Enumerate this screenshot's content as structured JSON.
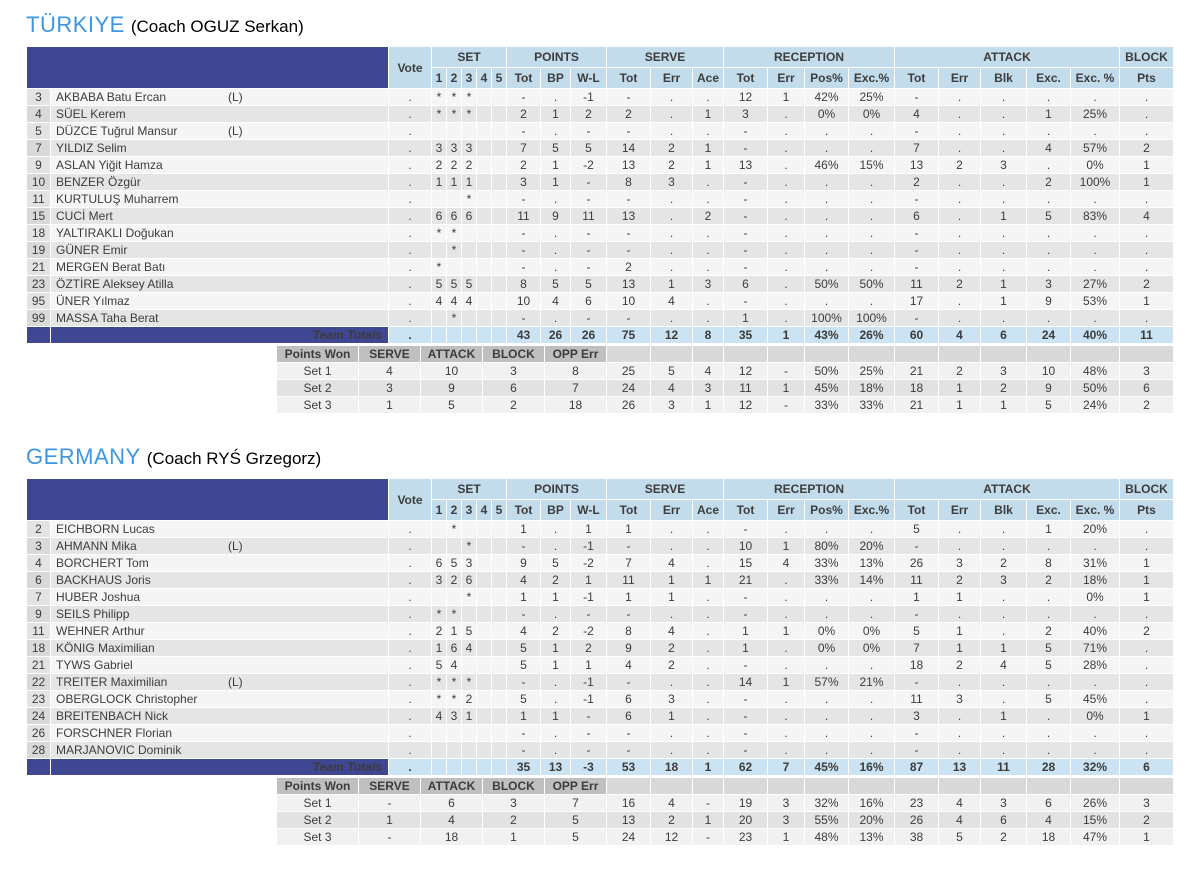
{
  "colors": {
    "team_title_blue": "#3D96E2",
    "header_navy": "#3F4692",
    "header_light_blue": "#C3DCEC",
    "totals_light_blue": "#CBE3F3"
  },
  "header": {
    "vote": "Vote",
    "groups": [
      {
        "label": "SET",
        "cols": [
          "1",
          "2",
          "3",
          "4",
          "5"
        ]
      },
      {
        "label": "POINTS",
        "cols": [
          "Tot",
          "BP",
          "W-L"
        ]
      },
      {
        "label": "SERVE",
        "cols": [
          "Tot",
          "Err",
          "Ace"
        ]
      },
      {
        "label": "RECEPTION",
        "cols": [
          "Tot",
          "Err",
          "Pos%",
          "Exc.%"
        ]
      },
      {
        "label": "ATTACK",
        "cols": [
          "Tot",
          "Err",
          "Blk",
          "Exc.",
          "Exc. %"
        ]
      },
      {
        "label": "BLOCK",
        "cols": [
          "Pts"
        ]
      }
    ]
  },
  "summary_header": [
    "Points Won",
    "SERVE",
    "ATTACK",
    "BLOCK",
    "OPP Err"
  ],
  "team_totals_label": "Team Totals",
  "teams": [
    {
      "name": "TÜRKIYE",
      "coach": "(Coach OGUZ Serkan)",
      "players": [
        {
          "num": "3",
          "name": "AKBABA Batu Ercan",
          "libero": "(L)",
          "vote": ".",
          "sets": [
            "*",
            "*",
            "*",
            "",
            ""
          ],
          "stats": [
            "-",
            ".",
            "-1",
            "-",
            ".",
            ".",
            "12",
            "1",
            "42%",
            "25%",
            "-",
            ".",
            ".",
            ".",
            ".",
            "."
          ]
        },
        {
          "num": "4",
          "name": "SÜEL Kerem",
          "libero": "",
          "vote": ".",
          "sets": [
            "*",
            "*",
            "*",
            "",
            ""
          ],
          "stats": [
            "2",
            "1",
            "2",
            "2",
            ".",
            "1",
            "3",
            ".",
            "0%",
            "0%",
            "4",
            ".",
            ".",
            "1",
            "25%",
            "."
          ]
        },
        {
          "num": "5",
          "name": "DÜZCE Tuğrul Mansur",
          "libero": "(L)",
          "vote": ".",
          "sets": [
            "",
            "",
            "",
            "",
            ""
          ],
          "stats": [
            "-",
            ".",
            "-",
            "-",
            ".",
            ".",
            "-",
            ".",
            ".",
            ".",
            "-",
            ".",
            ".",
            ".",
            ".",
            "."
          ]
        },
        {
          "num": "7",
          "name": "YILDIZ Selim",
          "libero": "",
          "vote": ".",
          "sets": [
            "3",
            "3",
            "3",
            "",
            ""
          ],
          "stats": [
            "7",
            "5",
            "5",
            "14",
            "2",
            "1",
            "-",
            ".",
            ".",
            ".",
            "7",
            ".",
            ".",
            "4",
            "57%",
            "2"
          ]
        },
        {
          "num": "9",
          "name": "ASLAN Yiğit Hamza",
          "libero": "",
          "vote": ".",
          "sets": [
            "2",
            "2",
            "2",
            "",
            ""
          ],
          "stats": [
            "2",
            "1",
            "-2",
            "13",
            "2",
            "1",
            "13",
            ".",
            "46%",
            "15%",
            "13",
            "2",
            "3",
            ".",
            "0%",
            "1"
          ]
        },
        {
          "num": "10",
          "name": "BENZER Özgür",
          "libero": "",
          "vote": ".",
          "sets": [
            "1",
            "1",
            "1",
            "",
            ""
          ],
          "stats": [
            "3",
            "1",
            "-",
            "8",
            "3",
            ".",
            "-",
            ".",
            ".",
            ".",
            "2",
            ".",
            ".",
            "2",
            "100%",
            "1"
          ]
        },
        {
          "num": "11",
          "name": "KURTULUŞ Muharrem",
          "libero": "",
          "vote": ".",
          "sets": [
            "",
            "",
            "*",
            "",
            ""
          ],
          "stats": [
            "-",
            ".",
            "-",
            "-",
            ".",
            ".",
            "-",
            ".",
            ".",
            ".",
            "-",
            ".",
            ".",
            ".",
            ".",
            "."
          ]
        },
        {
          "num": "15",
          "name": "CUCİ Mert",
          "libero": "",
          "vote": ".",
          "sets": [
            "6",
            "6",
            "6",
            "",
            ""
          ],
          "stats": [
            "11",
            "9",
            "11",
            "13",
            ".",
            "2",
            "-",
            ".",
            ".",
            ".",
            "6",
            ".",
            "1",
            "5",
            "83%",
            "4"
          ]
        },
        {
          "num": "18",
          "name": "YALTIRAKLI Doğukan",
          "libero": "",
          "vote": ".",
          "sets": [
            "*",
            "*",
            "",
            "",
            ""
          ],
          "stats": [
            "-",
            ".",
            "-",
            "-",
            ".",
            ".",
            "-",
            ".",
            ".",
            ".",
            "-",
            ".",
            ".",
            ".",
            ".",
            "."
          ]
        },
        {
          "num": "19",
          "name": "GÜNER Emir",
          "libero": "",
          "vote": ".",
          "sets": [
            "",
            "*",
            "",
            "",
            ""
          ],
          "stats": [
            "-",
            ".",
            "-",
            "-",
            ".",
            ".",
            "-",
            ".",
            ".",
            ".",
            "-",
            ".",
            ".",
            ".",
            ".",
            "."
          ]
        },
        {
          "num": "21",
          "name": "MERGEN Berat Batı",
          "libero": "",
          "vote": ".",
          "sets": [
            "*",
            "",
            "",
            "",
            ""
          ],
          "stats": [
            "-",
            ".",
            "-",
            "2",
            ".",
            ".",
            "-",
            ".",
            ".",
            ".",
            "-",
            ".",
            ".",
            ".",
            ".",
            "."
          ]
        },
        {
          "num": "23",
          "name": "ÖZTİRE Aleksey Atilla",
          "libero": "",
          "vote": ".",
          "sets": [
            "5",
            "5",
            "5",
            "",
            ""
          ],
          "stats": [
            "8",
            "5",
            "5",
            "13",
            "1",
            "3",
            "6",
            ".",
            "50%",
            "50%",
            "11",
            "2",
            "1",
            "3",
            "27%",
            "2"
          ]
        },
        {
          "num": "95",
          "name": "ÜNER Yılmaz",
          "libero": "",
          "vote": ".",
          "sets": [
            "4",
            "4",
            "4",
            "",
            ""
          ],
          "stats": [
            "10",
            "4",
            "6",
            "10",
            "4",
            ".",
            "-",
            ".",
            ".",
            ".",
            "17",
            ".",
            "1",
            "9",
            "53%",
            "1"
          ]
        },
        {
          "num": "99",
          "name": "MASSA Taha Berat",
          "libero": "",
          "vote": ".",
          "sets": [
            "",
            "*",
            "",
            "",
            ""
          ],
          "stats": [
            "-",
            ".",
            "-",
            "-",
            ".",
            ".",
            "1",
            ".",
            "100%",
            "100%",
            "-",
            ".",
            ".",
            ".",
            ".",
            "."
          ]
        }
      ],
      "totals": {
        "vote": ".",
        "stats": [
          "43",
          "26",
          "26",
          "75",
          "12",
          "8",
          "35",
          "1",
          "43%",
          "26%",
          "60",
          "4",
          "6",
          "24",
          "40%",
          "11"
        ]
      },
      "set_rows": [
        {
          "label": "Set 1",
          "won": [
            "4",
            "10",
            "3",
            "8"
          ],
          "stats": [
            "25",
            "5",
            "4",
            "12",
            "-",
            "50%",
            "25%",
            "21",
            "2",
            "3",
            "10",
            "48%",
            "3"
          ]
        },
        {
          "label": "Set 2",
          "won": [
            "3",
            "9",
            "6",
            "7"
          ],
          "stats": [
            "24",
            "4",
            "3",
            "11",
            "1",
            "45%",
            "18%",
            "18",
            "1",
            "2",
            "9",
            "50%",
            "6"
          ]
        },
        {
          "label": "Set 3",
          "won": [
            "1",
            "5",
            "2",
            "18"
          ],
          "stats": [
            "26",
            "3",
            "1",
            "12",
            "-",
            "33%",
            "33%",
            "21",
            "1",
            "1",
            "5",
            "24%",
            "2"
          ]
        }
      ]
    },
    {
      "name": "GERMANY",
      "coach": "(Coach RYŚ Grzegorz)",
      "players": [
        {
          "num": "2",
          "name": "EICHBORN Lucas",
          "libero": "",
          "vote": ".",
          "sets": [
            "",
            "*",
            "",
            "",
            ""
          ],
          "stats": [
            "1",
            ".",
            "1",
            "1",
            ".",
            ".",
            "-",
            ".",
            ".",
            ".",
            "5",
            ".",
            ".",
            "1",
            "20%",
            "."
          ]
        },
        {
          "num": "3",
          "name": "AHMANN Mika",
          "libero": "(L)",
          "vote": ".",
          "sets": [
            "",
            "",
            "*",
            "",
            ""
          ],
          "stats": [
            "-",
            ".",
            "-1",
            "-",
            ".",
            ".",
            "10",
            "1",
            "80%",
            "20%",
            "-",
            ".",
            ".",
            ".",
            ".",
            "."
          ]
        },
        {
          "num": "4",
          "name": "BORCHERT Tom",
          "libero": "",
          "vote": ".",
          "sets": [
            "6",
            "5",
            "3",
            "",
            ""
          ],
          "stats": [
            "9",
            "5",
            "-2",
            "7",
            "4",
            ".",
            "15",
            "4",
            "33%",
            "13%",
            "26",
            "3",
            "2",
            "8",
            "31%",
            "1"
          ]
        },
        {
          "num": "6",
          "name": "BACKHAUS Joris",
          "libero": "",
          "vote": ".",
          "sets": [
            "3",
            "2",
            "6",
            "",
            ""
          ],
          "stats": [
            "4",
            "2",
            "1",
            "11",
            "1",
            "1",
            "21",
            ".",
            "33%",
            "14%",
            "11",
            "2",
            "3",
            "2",
            "18%",
            "1"
          ]
        },
        {
          "num": "7",
          "name": "HUBER Joshua",
          "libero": "",
          "vote": ".",
          "sets": [
            "",
            "",
            "*",
            "",
            ""
          ],
          "stats": [
            "1",
            "1",
            "-1",
            "1",
            "1",
            ".",
            "-",
            ".",
            ".",
            ".",
            "1",
            "1",
            ".",
            ".",
            "0%",
            "1"
          ]
        },
        {
          "num": "9",
          "name": "SEILS Philipp",
          "libero": "",
          "vote": ".",
          "sets": [
            "*",
            "*",
            "",
            "",
            ""
          ],
          "stats": [
            "-",
            ".",
            "-",
            "-",
            ".",
            ".",
            "-",
            ".",
            ".",
            ".",
            "-",
            ".",
            ".",
            ".",
            ".",
            "."
          ]
        },
        {
          "num": "11",
          "name": "WEHNER Arthur",
          "libero": "",
          "vote": ".",
          "sets": [
            "2",
            "1",
            "5",
            "",
            ""
          ],
          "stats": [
            "4",
            "2",
            "-2",
            "8",
            "4",
            ".",
            "1",
            "1",
            "0%",
            "0%",
            "5",
            "1",
            ".",
            "2",
            "40%",
            "2"
          ]
        },
        {
          "num": "18",
          "name": "KÖNIG Maximilian",
          "libero": "",
          "vote": ".",
          "sets": [
            "1",
            "6",
            "4",
            "",
            ""
          ],
          "stats": [
            "5",
            "1",
            "2",
            "9",
            "2",
            ".",
            "1",
            ".",
            "0%",
            "0%",
            "7",
            "1",
            "1",
            "5",
            "71%",
            "."
          ]
        },
        {
          "num": "21",
          "name": "TYWS Gabriel",
          "libero": "",
          "vote": ".",
          "sets": [
            "5",
            "4",
            "",
            "",
            ""
          ],
          "stats": [
            "5",
            "1",
            "1",
            "4",
            "2",
            ".",
            "-",
            ".",
            ".",
            ".",
            "18",
            "2",
            "4",
            "5",
            "28%",
            "."
          ]
        },
        {
          "num": "22",
          "name": "TREITER Maximilian",
          "libero": "(L)",
          "vote": ".",
          "sets": [
            "*",
            "*",
            "*",
            "",
            ""
          ],
          "stats": [
            "-",
            ".",
            "-1",
            "-",
            ".",
            ".",
            "14",
            "1",
            "57%",
            "21%",
            "-",
            ".",
            ".",
            ".",
            ".",
            "."
          ]
        },
        {
          "num": "23",
          "name": "OBERGLOCK Christopher",
          "libero": "",
          "vote": ".",
          "sets": [
            "*",
            "*",
            "2",
            "",
            ""
          ],
          "stats": [
            "5",
            ".",
            "-1",
            "6",
            "3",
            ".",
            "-",
            ".",
            ".",
            ".",
            "11",
            "3",
            ".",
            "5",
            "45%",
            "."
          ]
        },
        {
          "num": "24",
          "name": "BREITENBACH Nick",
          "libero": "",
          "vote": ".",
          "sets": [
            "4",
            "3",
            "1",
            "",
            ""
          ],
          "stats": [
            "1",
            "1",
            "-",
            "6",
            "1",
            ".",
            "-",
            ".",
            ".",
            ".",
            "3",
            ".",
            "1",
            ".",
            "0%",
            "1"
          ]
        },
        {
          "num": "26",
          "name": "FORSCHNER Florian",
          "libero": "",
          "vote": ".",
          "sets": [
            "",
            "",
            "",
            "",
            ""
          ],
          "stats": [
            "-",
            ".",
            "-",
            "-",
            ".",
            ".",
            "-",
            ".",
            ".",
            ".",
            "-",
            ".",
            ".",
            ".",
            ".",
            "."
          ]
        },
        {
          "num": "28",
          "name": "MARJANOVIC Dominik",
          "libero": "",
          "vote": ".",
          "sets": [
            "",
            "",
            "",
            "",
            ""
          ],
          "stats": [
            "-",
            ".",
            "-",
            "-",
            ".",
            ".",
            "-",
            ".",
            ".",
            ".",
            "-",
            ".",
            ".",
            ".",
            ".",
            "."
          ]
        }
      ],
      "totals": {
        "vote": ".",
        "stats": [
          "35",
          "13",
          "-3",
          "53",
          "18",
          "1",
          "62",
          "7",
          "45%",
          "16%",
          "87",
          "13",
          "11",
          "28",
          "32%",
          "6"
        ]
      },
      "set_rows": [
        {
          "label": "Set 1",
          "won": [
            "-",
            "6",
            "3",
            "7"
          ],
          "stats": [
            "16",
            "4",
            "-",
            "19",
            "3",
            "32%",
            "16%",
            "23",
            "4",
            "3",
            "6",
            "26%",
            "3"
          ]
        },
        {
          "label": "Set 2",
          "won": [
            "1",
            "4",
            "2",
            "5"
          ],
          "stats": [
            "13",
            "2",
            "1",
            "20",
            "3",
            "55%",
            "20%",
            "26",
            "4",
            "6",
            "4",
            "15%",
            "2"
          ]
        },
        {
          "label": "Set 3",
          "won": [
            "-",
            "18",
            "1",
            "5"
          ],
          "stats": [
            "24",
            "12",
            "-",
            "23",
            "1",
            "48%",
            "13%",
            "38",
            "5",
            "2",
            "18",
            "47%",
            "1"
          ]
        }
      ]
    }
  ]
}
